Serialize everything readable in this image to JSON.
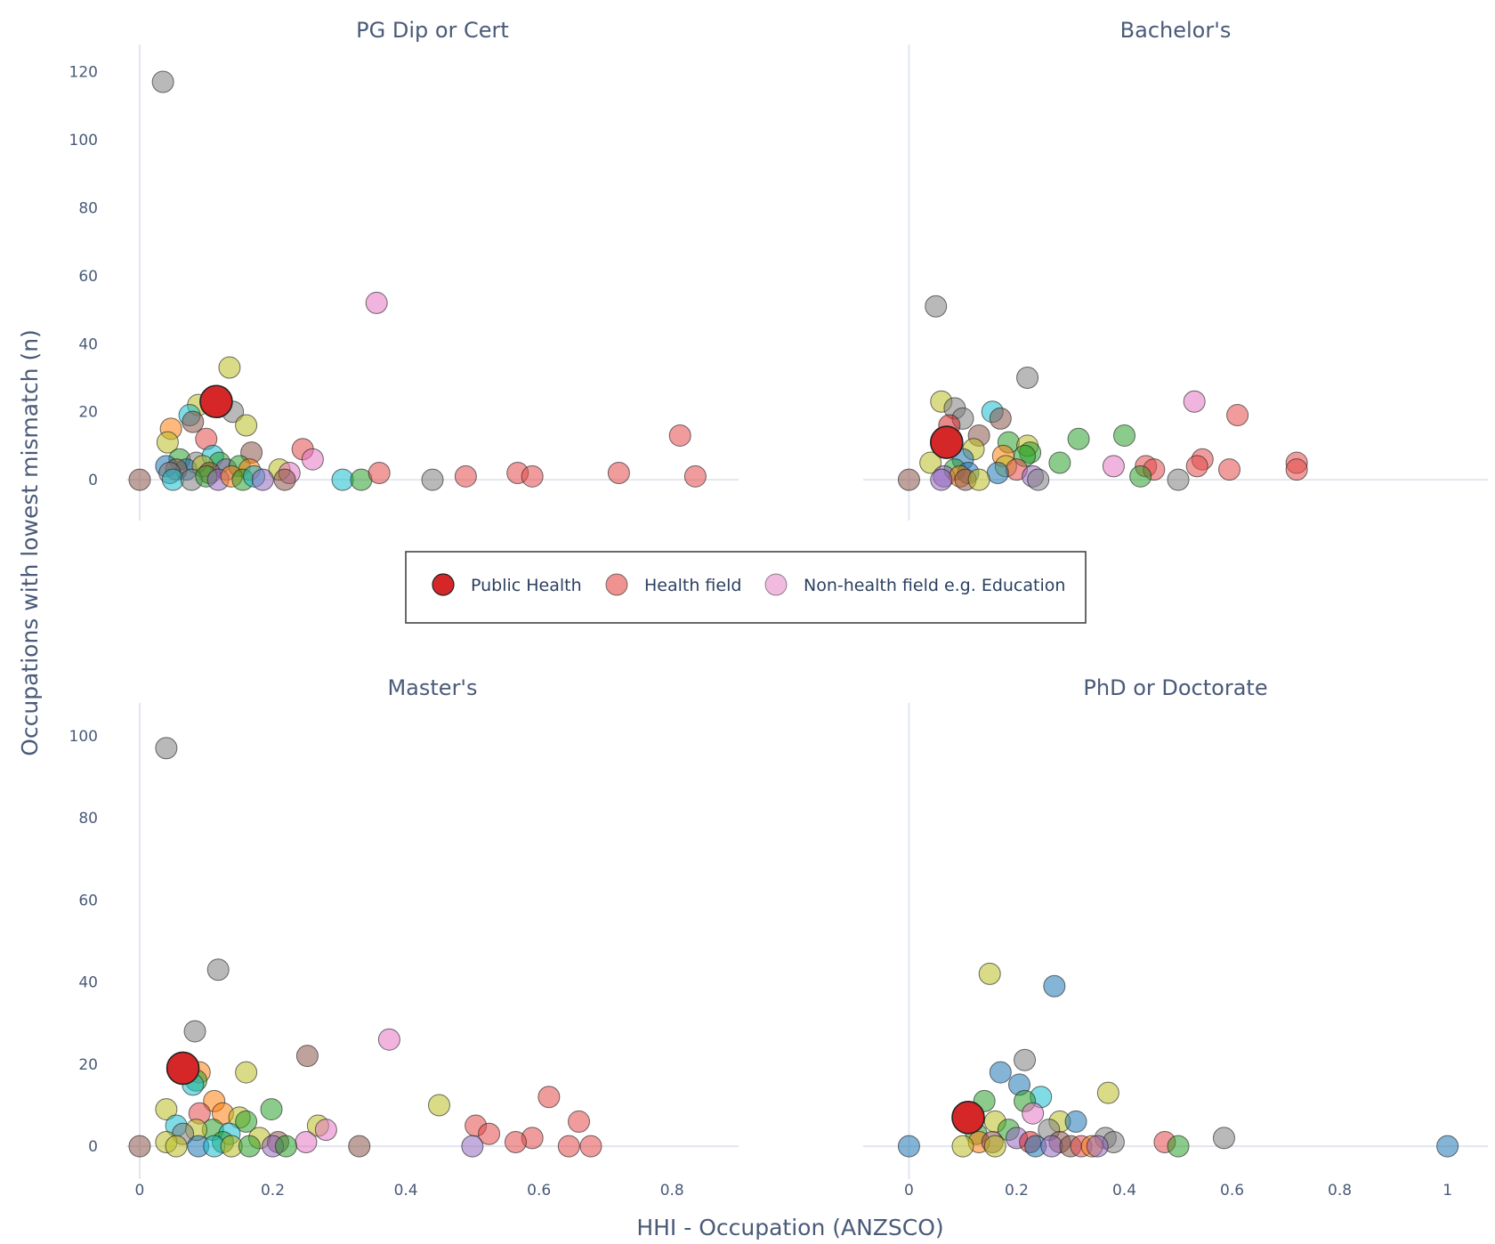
{
  "chart_data": {
    "type": "scatter",
    "xlabel": "HHI - Occupation (ANZSCO)",
    "ylabel": "Occupations with lowest mismatch (n)",
    "legend": {
      "position": "center",
      "items": [
        {
          "name": "Public Health",
          "color": "#d62728",
          "opacity": 1.0
        },
        {
          "name": "Health field",
          "color": "#e34a4a",
          "opacity": 0.6
        },
        {
          "name": "Non-health field e.g. Education",
          "color": "#e377c2",
          "opacity": 0.5
        }
      ]
    },
    "panels": [
      {
        "title": "PG Dip or Cert",
        "xlim": [
          -0.02,
          0.9
        ],
        "ylim": [
          -12,
          128
        ],
        "xticks": [],
        "yticks": [
          0,
          20,
          40,
          60,
          80,
          100,
          120
        ],
        "points": [
          {
            "x": 0.035,
            "y": 117,
            "c": "#7f7f7f"
          },
          {
            "x": 0.356,
            "y": 52,
            "c": "#e377c2"
          },
          {
            "x": 0.135,
            "y": 33,
            "c": "#bcbd22"
          },
          {
            "x": 0.115,
            "y": 23,
            "c": "#d62728",
            "s": "ph"
          },
          {
            "x": 0.14,
            "y": 20,
            "c": "#7f7f7f"
          },
          {
            "x": 0.088,
            "y": 22,
            "c": "#bcbd22"
          },
          {
            "x": 0.075,
            "y": 19,
            "c": "#17becf"
          },
          {
            "x": 0.16,
            "y": 16,
            "c": "#bcbd22"
          },
          {
            "x": 0.047,
            "y": 15,
            "c": "#ff7f0e"
          },
          {
            "x": 0.08,
            "y": 17,
            "c": "#8c564b"
          },
          {
            "x": 0.1,
            "y": 12,
            "c": "#e34a4a"
          },
          {
            "x": 0.042,
            "y": 11,
            "c": "#bcbd22"
          },
          {
            "x": 0.245,
            "y": 9,
            "c": "#e34a4a"
          },
          {
            "x": 0.168,
            "y": 8,
            "c": "#8c564b"
          },
          {
            "x": 0.26,
            "y": 6,
            "c": "#e377c2"
          },
          {
            "x": 0.06,
            "y": 6,
            "c": "#2ca02c"
          },
          {
            "x": 0.085,
            "y": 5,
            "c": "#7f7f7f"
          },
          {
            "x": 0.11,
            "y": 7,
            "c": "#17becf"
          },
          {
            "x": 0.12,
            "y": 5,
            "c": "#2ca02c"
          },
          {
            "x": 0.07,
            "y": 3,
            "c": "#1f77b4"
          },
          {
            "x": 0.095,
            "y": 4,
            "c": "#bcbd22"
          },
          {
            "x": 0.04,
            "y": 4,
            "c": "#1f77b4"
          },
          {
            "x": 0.055,
            "y": 3,
            "c": "#8c564b"
          },
          {
            "x": 0.13,
            "y": 3,
            "c": "#9467bd"
          },
          {
            "x": 0.15,
            "y": 4,
            "c": "#2ca02c"
          },
          {
            "x": 0.165,
            "y": 3,
            "c": "#ff7f0e"
          },
          {
            "x": 0.21,
            "y": 3,
            "c": "#bcbd22"
          },
          {
            "x": 0.225,
            "y": 2,
            "c": "#e377c2"
          },
          {
            "x": 0.105,
            "y": 2,
            "c": "#8c564b"
          },
          {
            "x": 0.045,
            "y": 2,
            "c": "#7f7f7f"
          },
          {
            "x": 0.05,
            "y": 0,
            "c": "#17becf"
          },
          {
            "x": 0.078,
            "y": 0,
            "c": "#7f7f7f"
          },
          {
            "x": 0.1,
            "y": 1,
            "c": "#2ca02c"
          },
          {
            "x": 0.118,
            "y": 0,
            "c": "#9467bd"
          },
          {
            "x": 0.138,
            "y": 1,
            "c": "#ff7f0e"
          },
          {
            "x": 0.155,
            "y": 0,
            "c": "#2ca02c"
          },
          {
            "x": 0.172,
            "y": 1,
            "c": "#17becf"
          },
          {
            "x": 0.185,
            "y": 0,
            "c": "#9467bd"
          },
          {
            "x": 0.218,
            "y": 0,
            "c": "#8c564b"
          },
          {
            "x": 0.0,
            "y": 0,
            "c": "#8c564b"
          },
          {
            "x": 0.305,
            "y": 0,
            "c": "#17becf"
          },
          {
            "x": 0.333,
            "y": 0,
            "c": "#2ca02c"
          },
          {
            "x": 0.36,
            "y": 2,
            "c": "#e34a4a"
          },
          {
            "x": 0.44,
            "y": 0,
            "c": "#7f7f7f"
          },
          {
            "x": 0.49,
            "y": 1,
            "c": "#e34a4a"
          },
          {
            "x": 0.568,
            "y": 2,
            "c": "#e34a4a"
          },
          {
            "x": 0.59,
            "y": 1,
            "c": "#e34a4a"
          },
          {
            "x": 0.72,
            "y": 2,
            "c": "#e34a4a"
          },
          {
            "x": 0.812,
            "y": 13,
            "c": "#e34a4a"
          },
          {
            "x": 0.835,
            "y": 1,
            "c": "#e34a4a"
          }
        ]
      },
      {
        "title": "Bachelor's",
        "xlim": [
          -0.085,
          1.075
        ],
        "ylim": [
          -12,
          128
        ],
        "xticks": [],
        "yticks": [],
        "points": [
          {
            "x": 0.05,
            "y": 51,
            "c": "#7f7f7f"
          },
          {
            "x": 0.22,
            "y": 30,
            "c": "#7f7f7f"
          },
          {
            "x": 0.53,
            "y": 23,
            "c": "#e377c2"
          },
          {
            "x": 0.06,
            "y": 23,
            "c": "#bcbd22"
          },
          {
            "x": 0.085,
            "y": 21,
            "c": "#7f7f7f"
          },
          {
            "x": 0.155,
            "y": 20,
            "c": "#17becf"
          },
          {
            "x": 0.61,
            "y": 19,
            "c": "#e34a4a"
          },
          {
            "x": 0.17,
            "y": 18,
            "c": "#8c564b"
          },
          {
            "x": 0.1,
            "y": 18,
            "c": "#7f7f7f"
          },
          {
            "x": 0.075,
            "y": 16,
            "c": "#d62728"
          },
          {
            "x": 0.4,
            "y": 13,
            "c": "#2ca02c"
          },
          {
            "x": 0.13,
            "y": 13,
            "c": "#8c564b"
          },
          {
            "x": 0.315,
            "y": 12,
            "c": "#2ca02c"
          },
          {
            "x": 0.07,
            "y": 11,
            "c": "#d62728",
            "s": "ph"
          },
          {
            "x": 0.185,
            "y": 11,
            "c": "#2ca02c"
          },
          {
            "x": 0.22,
            "y": 10,
            "c": "#bcbd22"
          },
          {
            "x": 0.12,
            "y": 9,
            "c": "#bcbd22"
          },
          {
            "x": 0.225,
            "y": 8,
            "c": "#2ca02c"
          },
          {
            "x": 0.215,
            "y": 7,
            "c": "#2ca02c"
          },
          {
            "x": 0.175,
            "y": 7,
            "c": "#ff7f0e"
          },
          {
            "x": 0.545,
            "y": 6,
            "c": "#e34a4a"
          },
          {
            "x": 0.72,
            "y": 5,
            "c": "#e34a4a"
          },
          {
            "x": 0.28,
            "y": 5,
            "c": "#2ca02c"
          },
          {
            "x": 0.04,
            "y": 5,
            "c": "#bcbd22"
          },
          {
            "x": 0.1,
            "y": 6,
            "c": "#1f77b4"
          },
          {
            "x": 0.38,
            "y": 4,
            "c": "#e377c2"
          },
          {
            "x": 0.44,
            "y": 4,
            "c": "#e34a4a"
          },
          {
            "x": 0.535,
            "y": 4,
            "c": "#e34a4a"
          },
          {
            "x": 0.18,
            "y": 4,
            "c": "#bcbd22"
          },
          {
            "x": 0.2,
            "y": 3,
            "c": "#e34a4a"
          },
          {
            "x": 0.455,
            "y": 3,
            "c": "#e34a4a"
          },
          {
            "x": 0.595,
            "y": 3,
            "c": "#e34a4a"
          },
          {
            "x": 0.72,
            "y": 3,
            "c": "#e34a4a"
          },
          {
            "x": 0.085,
            "y": 3,
            "c": "#2ca02c"
          },
          {
            "x": 0.11,
            "y": 2,
            "c": "#1f77b4"
          },
          {
            "x": 0.165,
            "y": 2,
            "c": "#1f77b4"
          },
          {
            "x": 0.065,
            "y": 1,
            "c": "#9467bd"
          },
          {
            "x": 0.095,
            "y": 1,
            "c": "#ff7f0e"
          },
          {
            "x": 0.43,
            "y": 1,
            "c": "#2ca02c"
          },
          {
            "x": 0.23,
            "y": 1,
            "c": "#9467bd"
          },
          {
            "x": 0.06,
            "y": 0,
            "c": "#9467bd"
          },
          {
            "x": 0.105,
            "y": 0,
            "c": "#8c564b"
          },
          {
            "x": 0.13,
            "y": 0,
            "c": "#bcbd22"
          },
          {
            "x": 0.24,
            "y": 0,
            "c": "#7f7f7f"
          },
          {
            "x": 0.5,
            "y": 0,
            "c": "#7f7f7f"
          },
          {
            "x": 0.0,
            "y": 0,
            "c": "#8c564b"
          }
        ]
      },
      {
        "title": "Master's",
        "xlim": [
          -0.02,
          0.9
        ],
        "ylim": [
          -8,
          108
        ],
        "xticks": [
          0,
          0.2,
          0.4,
          0.6,
          0.8
        ],
        "yticks": [
          0,
          20,
          40,
          60,
          80,
          100
        ],
        "points": [
          {
            "x": 0.04,
            "y": 97,
            "c": "#7f7f7f"
          },
          {
            "x": 0.118,
            "y": 43,
            "c": "#7f7f7f"
          },
          {
            "x": 0.083,
            "y": 28,
            "c": "#7f7f7f"
          },
          {
            "x": 0.375,
            "y": 26,
            "c": "#e377c2"
          },
          {
            "x": 0.252,
            "y": 22,
            "c": "#8c564b"
          },
          {
            "x": 0.065,
            "y": 19,
            "c": "#d62728",
            "s": "ph"
          },
          {
            "x": 0.09,
            "y": 18,
            "c": "#ff7f0e"
          },
          {
            "x": 0.16,
            "y": 18,
            "c": "#bcbd22"
          },
          {
            "x": 0.085,
            "y": 16,
            "c": "#2ca02c"
          },
          {
            "x": 0.08,
            "y": 15,
            "c": "#17becf"
          },
          {
            "x": 0.615,
            "y": 12,
            "c": "#e34a4a"
          },
          {
            "x": 0.112,
            "y": 11,
            "c": "#ff7f0e"
          },
          {
            "x": 0.45,
            "y": 10,
            "c": "#bcbd22"
          },
          {
            "x": 0.04,
            "y": 9,
            "c": "#bcbd22"
          },
          {
            "x": 0.198,
            "y": 9,
            "c": "#2ca02c"
          },
          {
            "x": 0.09,
            "y": 8,
            "c": "#e34a4a"
          },
          {
            "x": 0.125,
            "y": 8,
            "c": "#ff7f0e"
          },
          {
            "x": 0.15,
            "y": 7,
            "c": "#bcbd22"
          },
          {
            "x": 0.16,
            "y": 6,
            "c": "#2ca02c"
          },
          {
            "x": 0.66,
            "y": 6,
            "c": "#e34a4a"
          },
          {
            "x": 0.505,
            "y": 5,
            "c": "#e34a4a"
          },
          {
            "x": 0.268,
            "y": 5,
            "c": "#bcbd22"
          },
          {
            "x": 0.055,
            "y": 5,
            "c": "#17becf"
          },
          {
            "x": 0.28,
            "y": 4,
            "c": "#e377c2"
          },
          {
            "x": 0.11,
            "y": 4,
            "c": "#2ca02c"
          },
          {
            "x": 0.085,
            "y": 4,
            "c": "#bcbd22"
          },
          {
            "x": 0.525,
            "y": 3,
            "c": "#e34a4a"
          },
          {
            "x": 0.065,
            "y": 3,
            "c": "#7f7f7f"
          },
          {
            "x": 0.135,
            "y": 3,
            "c": "#17becf"
          },
          {
            "x": 0.18,
            "y": 2,
            "c": "#bcbd22"
          },
          {
            "x": 0.59,
            "y": 2,
            "c": "#e34a4a"
          },
          {
            "x": 0.208,
            "y": 1,
            "c": "#8c564b"
          },
          {
            "x": 0.25,
            "y": 1,
            "c": "#e377c2"
          },
          {
            "x": 0.565,
            "y": 1,
            "c": "#e34a4a"
          },
          {
            "x": 0.125,
            "y": 1,
            "c": "#2ca02c"
          },
          {
            "x": 0.04,
            "y": 1,
            "c": "#bcbd22"
          },
          {
            "x": 0.0,
            "y": 0,
            "c": "#8c564b"
          },
          {
            "x": 0.055,
            "y": 0,
            "c": "#bcbd22"
          },
          {
            "x": 0.088,
            "y": 0,
            "c": "#1f77b4"
          },
          {
            "x": 0.112,
            "y": 0,
            "c": "#17becf"
          },
          {
            "x": 0.138,
            "y": 0,
            "c": "#bcbd22"
          },
          {
            "x": 0.165,
            "y": 0,
            "c": "#2ca02c"
          },
          {
            "x": 0.2,
            "y": 0,
            "c": "#9467bd"
          },
          {
            "x": 0.22,
            "y": 0,
            "c": "#2ca02c"
          },
          {
            "x": 0.33,
            "y": 0,
            "c": "#8c564b"
          },
          {
            "x": 0.5,
            "y": 0,
            "c": "#9467bd"
          },
          {
            "x": 0.645,
            "y": 0,
            "c": "#e34a4a"
          },
          {
            "x": 0.678,
            "y": 0,
            "c": "#e34a4a"
          }
        ]
      },
      {
        "title": "PhD or Doctorate",
        "xlim": [
          -0.085,
          1.075
        ],
        "ylim": [
          -8,
          108
        ],
        "xticks": [
          0,
          0.2,
          0.4,
          0.6,
          0.8,
          1
        ],
        "yticks": [],
        "points": [
          {
            "x": 0.15,
            "y": 42,
            "c": "#bcbd22"
          },
          {
            "x": 0.27,
            "y": 39,
            "c": "#1f77b4"
          },
          {
            "x": 0.215,
            "y": 21,
            "c": "#7f7f7f"
          },
          {
            "x": 0.17,
            "y": 18,
            "c": "#1f77b4"
          },
          {
            "x": 0.205,
            "y": 15,
            "c": "#1f77b4"
          },
          {
            "x": 0.37,
            "y": 13,
            "c": "#bcbd22"
          },
          {
            "x": 0.245,
            "y": 12,
            "c": "#17becf"
          },
          {
            "x": 0.215,
            "y": 11,
            "c": "#2ca02c"
          },
          {
            "x": 0.14,
            "y": 11,
            "c": "#2ca02c"
          },
          {
            "x": 0.23,
            "y": 8,
            "c": "#e377c2"
          },
          {
            "x": 0.11,
            "y": 7,
            "c": "#d62728",
            "s": "ph"
          },
          {
            "x": 0.28,
            "y": 6,
            "c": "#bcbd22"
          },
          {
            "x": 0.31,
            "y": 6,
            "c": "#1f77b4"
          },
          {
            "x": 0.16,
            "y": 6,
            "c": "#bcbd22"
          },
          {
            "x": 0.185,
            "y": 4,
            "c": "#2ca02c"
          },
          {
            "x": 0.26,
            "y": 4,
            "c": "#7f7f7f"
          },
          {
            "x": 0.125,
            "y": 3,
            "c": "#2ca02c"
          },
          {
            "x": 0.2,
            "y": 2,
            "c": "#9467bd"
          },
          {
            "x": 0.585,
            "y": 2,
            "c": "#7f7f7f"
          },
          {
            "x": 0.365,
            "y": 2,
            "c": "#7f7f7f"
          },
          {
            "x": 0.13,
            "y": 1,
            "c": "#ff7f0e"
          },
          {
            "x": 0.155,
            "y": 1,
            "c": "#8c564b"
          },
          {
            "x": 0.225,
            "y": 1,
            "c": "#d62728"
          },
          {
            "x": 0.28,
            "y": 1,
            "c": "#8c564b"
          },
          {
            "x": 0.38,
            "y": 1,
            "c": "#7f7f7f"
          },
          {
            "x": 0.475,
            "y": 1,
            "c": "#e34a4a"
          },
          {
            "x": 0.1,
            "y": 0,
            "c": "#bcbd22"
          },
          {
            "x": 0.16,
            "y": 0,
            "c": "#bcbd22"
          },
          {
            "x": 0.235,
            "y": 0,
            "c": "#1f77b4"
          },
          {
            "x": 0.265,
            "y": 0,
            "c": "#9467bd"
          },
          {
            "x": 0.3,
            "y": 0,
            "c": "#8c564b"
          },
          {
            "x": 0.32,
            "y": 0,
            "c": "#e34a4a"
          },
          {
            "x": 0.34,
            "y": 0,
            "c": "#ff7f0e"
          },
          {
            "x": 0.35,
            "y": 0,
            "c": "#9467bd"
          },
          {
            "x": 0.5,
            "y": 0,
            "c": "#2ca02c"
          },
          {
            "x": 1.0,
            "y": 0,
            "c": "#1f77b4"
          },
          {
            "x": 0.0,
            "y": 0,
            "c": "#1f77b4"
          }
        ]
      }
    ]
  }
}
